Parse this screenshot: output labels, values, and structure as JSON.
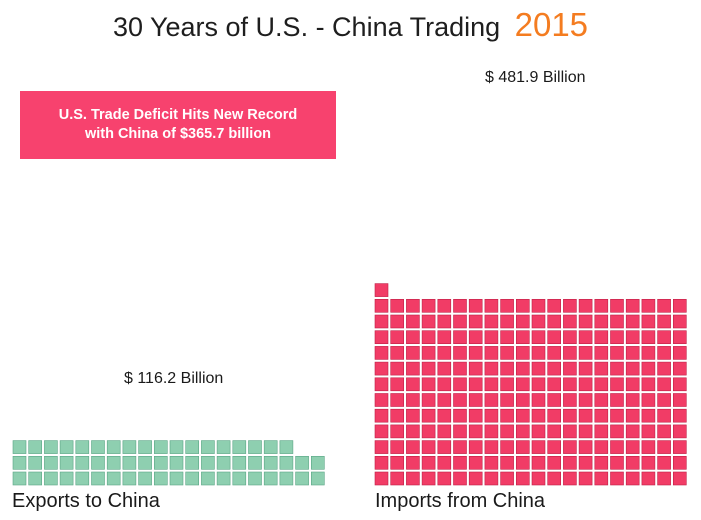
{
  "title": {
    "main": "30 Years of U.S. - China Trading",
    "year": "2015"
  },
  "callout": {
    "line1": "U.S. Trade Deficit Hits New Record",
    "line2": "with China of $365.7 billion"
  },
  "colors": {
    "year": "#f47c20",
    "callout_bg": "#f7426e",
    "exports": "#8ecfb0",
    "imports": "#f13c66"
  },
  "chart_data": {
    "type": "waffle",
    "unit_per_block_billion": 2,
    "series": [
      {
        "name": "Exports to China",
        "value_label": "$ 116.2 Billion",
        "value_billion": 116.2,
        "blocks": 58
      },
      {
        "name": "Imports from China",
        "value_label": "$ 481.9 Billion",
        "value_billion": 481.9,
        "blocks": 241
      }
    ]
  }
}
